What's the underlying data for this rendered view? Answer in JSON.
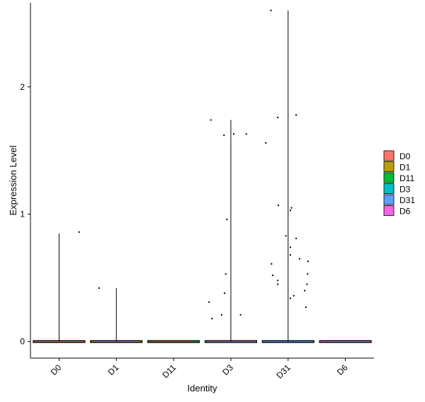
{
  "chart_data": {
    "type": "violin",
    "title": "",
    "xlabel": "Identity",
    "ylabel": "Expression Level",
    "categories": [
      "D0",
      "D1",
      "D11",
      "D3",
      "D31",
      "D6"
    ],
    "ylim": [
      -0.13,
      2.66
    ],
    "yticks": [
      0,
      1,
      2
    ],
    "series": [
      {
        "name": "D0",
        "color": "#F8766D",
        "max": 0.85,
        "points": [
          [
            0.35,
            0.86
          ]
        ]
      },
      {
        "name": "D1",
        "color": "#B79F00",
        "max": 0.42,
        "points": [
          [
            -0.3,
            0.42
          ]
        ]
      },
      {
        "name": "D11",
        "color": "#00BA38",
        "max": 0,
        "points": []
      },
      {
        "name": "D3",
        "color": "#00BFC4",
        "max": 1.74,
        "points": [
          [
            -0.35,
            1.74
          ],
          [
            -0.12,
            1.62
          ],
          [
            0.05,
            1.63
          ],
          [
            0.27,
            1.63
          ],
          [
            -0.07,
            0.96
          ],
          [
            -0.09,
            0.53
          ],
          [
            -0.11,
            0.38
          ],
          [
            -0.38,
            0.31
          ],
          [
            -0.16,
            0.21
          ],
          [
            0.17,
            0.21
          ],
          [
            -0.33,
            0.18
          ]
        ]
      },
      {
        "name": "D31",
        "color": "#619CFF",
        "max": 2.6,
        "points": [
          [
            -0.3,
            2.6
          ],
          [
            0.14,
            1.78
          ],
          [
            -0.18,
            1.76
          ],
          [
            -0.39,
            1.56
          ],
          [
            -0.17,
            1.07
          ],
          [
            0.06,
            1.05
          ],
          [
            0.04,
            1.03
          ],
          [
            -0.04,
            0.83
          ],
          [
            0.14,
            0.81
          ],
          [
            0.04,
            0.74
          ],
          [
            0.04,
            0.68
          ],
          [
            0.2,
            0.65
          ],
          [
            0.35,
            0.63
          ],
          [
            -0.29,
            0.61
          ],
          [
            0.34,
            0.53
          ],
          [
            -0.27,
            0.52
          ],
          [
            -0.18,
            0.48
          ],
          [
            -0.18,
            0.45
          ],
          [
            0.33,
            0.45
          ],
          [
            0.29,
            0.4
          ],
          [
            0.1,
            0.36
          ],
          [
            0.04,
            0.34
          ],
          [
            0.31,
            0.27
          ]
        ]
      },
      {
        "name": "D6",
        "color": "#F564E3",
        "max": 0,
        "points": []
      }
    ],
    "legend": {
      "position": "right",
      "entries": [
        "D0",
        "D1",
        "D11",
        "D3",
        "D31",
        "D6"
      ]
    },
    "grid": false
  }
}
